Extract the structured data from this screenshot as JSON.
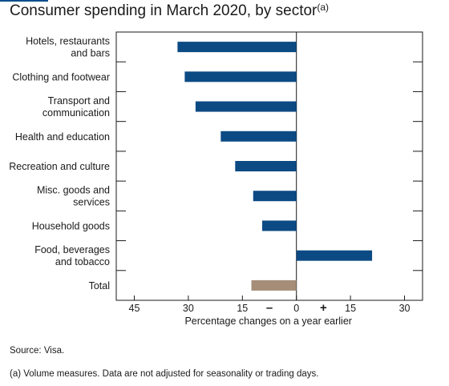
{
  "title": "Consumer spending in March 2020, by sector",
  "title_footnote_marker": "(a)",
  "source": "Source: Visa.",
  "footnote": "(a) Volume measures. Data are not adjusted for seasonality or trading days.",
  "colors": {
    "sector_bar": "#0c4a84",
    "total_bar": "#a58d78",
    "axis": "#1a1a1a"
  },
  "chart_data": {
    "type": "bar",
    "orientation": "horizontal",
    "title": "Consumer spending in March 2020, by sector",
    "xlabel": "Percentage changes on a year earlier",
    "ylabel": "",
    "xlim": [
      -50,
      35
    ],
    "x_ticks": [
      {
        "value": -45,
        "label": "45"
      },
      {
        "value": -30,
        "label": "30"
      },
      {
        "value": -15,
        "label": "15"
      },
      {
        "value": -7.5,
        "label": "–"
      },
      {
        "value": 0,
        "label": "0"
      },
      {
        "value": 7.5,
        "label": "+"
      },
      {
        "value": 15,
        "label": "15"
      },
      {
        "value": 30,
        "label": "30"
      }
    ],
    "categories": [
      [
        "Hotels, restaurants",
        "and bars"
      ],
      [
        "Clothing and footwear"
      ],
      [
        "Transport and",
        "communication"
      ],
      [
        "Health and education"
      ],
      [
        "Recreation and culture"
      ],
      [
        "Misc. goods and",
        "services"
      ],
      [
        "Household goods"
      ],
      [
        "Food, beverages",
        "and tobacco"
      ],
      [
        "Total"
      ]
    ],
    "values": [
      -33,
      -31,
      -28,
      -21,
      -17,
      -12,
      -9.5,
      21,
      -12.5
    ],
    "highlight_index": 8,
    "legend": "none",
    "grid": false
  }
}
